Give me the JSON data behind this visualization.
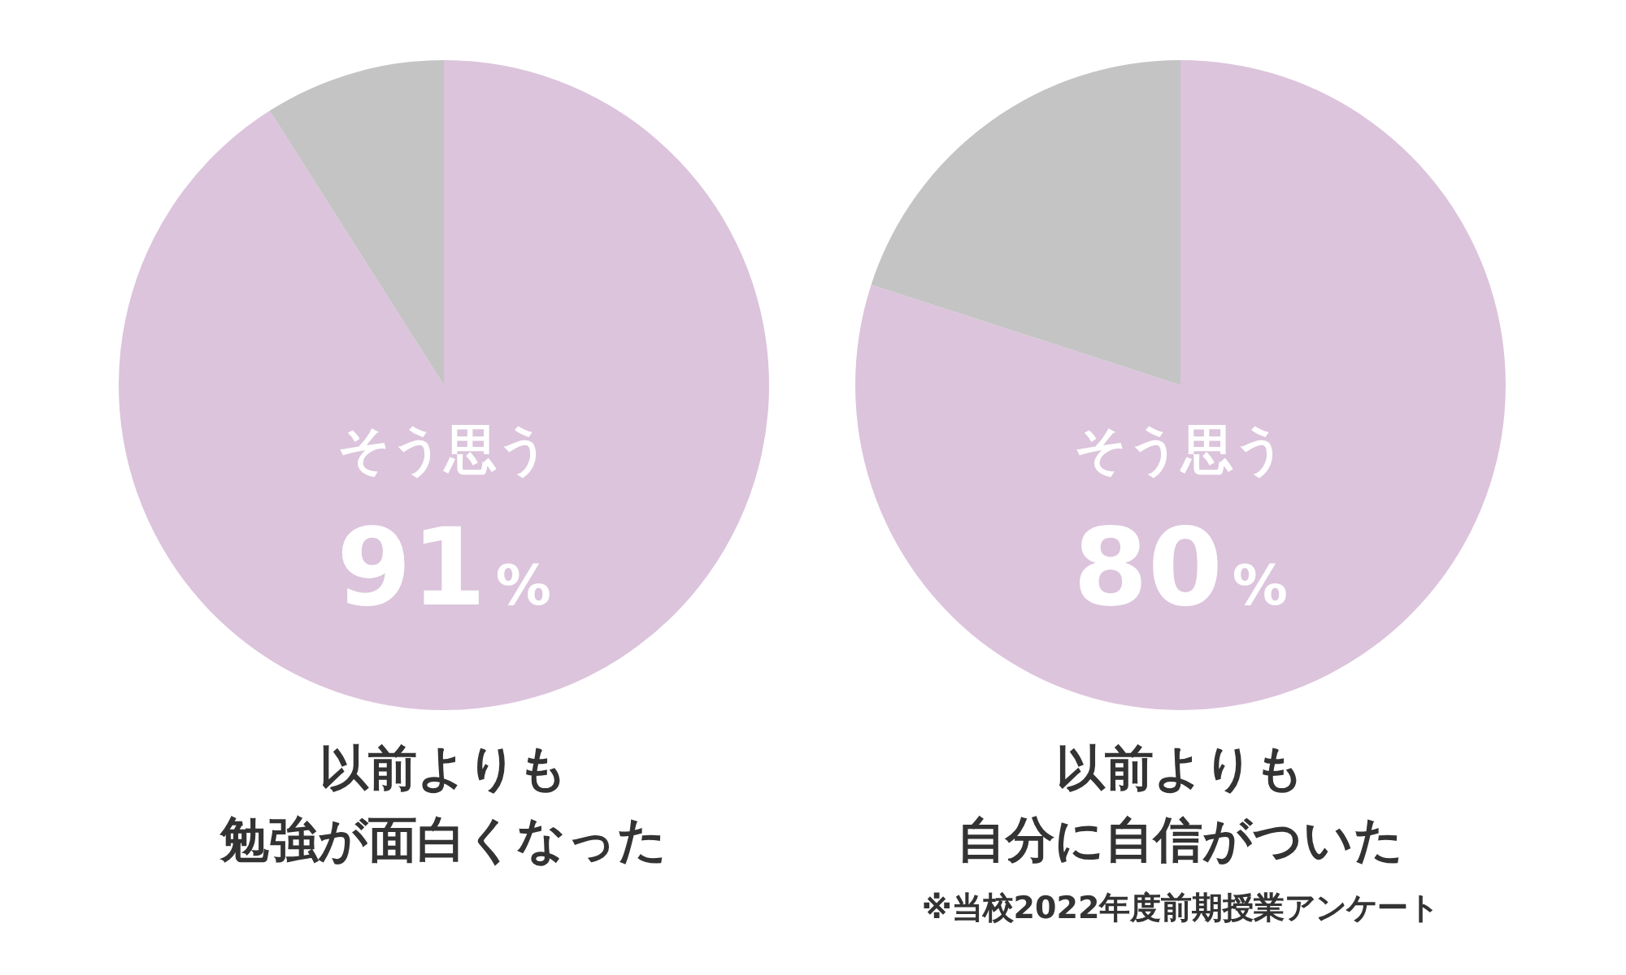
{
  "chart_data": [
    {
      "type": "pie",
      "title": "以前よりも",
      "subtitle": "勉強が面白くなった",
      "categories": [
        "そう思う",
        null
      ],
      "values": [
        91,
        9
      ],
      "colors": [
        "#dcc4dc",
        "#c4c4c4"
      ],
      "value_labels": [
        "91%",
        null
      ],
      "legend": false
    },
    {
      "type": "pie",
      "title": "以前よりも",
      "subtitle": "自分に自信がついた",
      "categories": [
        "そう思う",
        null
      ],
      "values": [
        80,
        20
      ],
      "colors": [
        "#dcc4dc",
        "#c4c4c4"
      ],
      "value_labels": [
        "80%",
        null
      ],
      "legend": false,
      "annotations": [
        "※当校2022年度前期授業アンケート"
      ]
    }
  ]
}
